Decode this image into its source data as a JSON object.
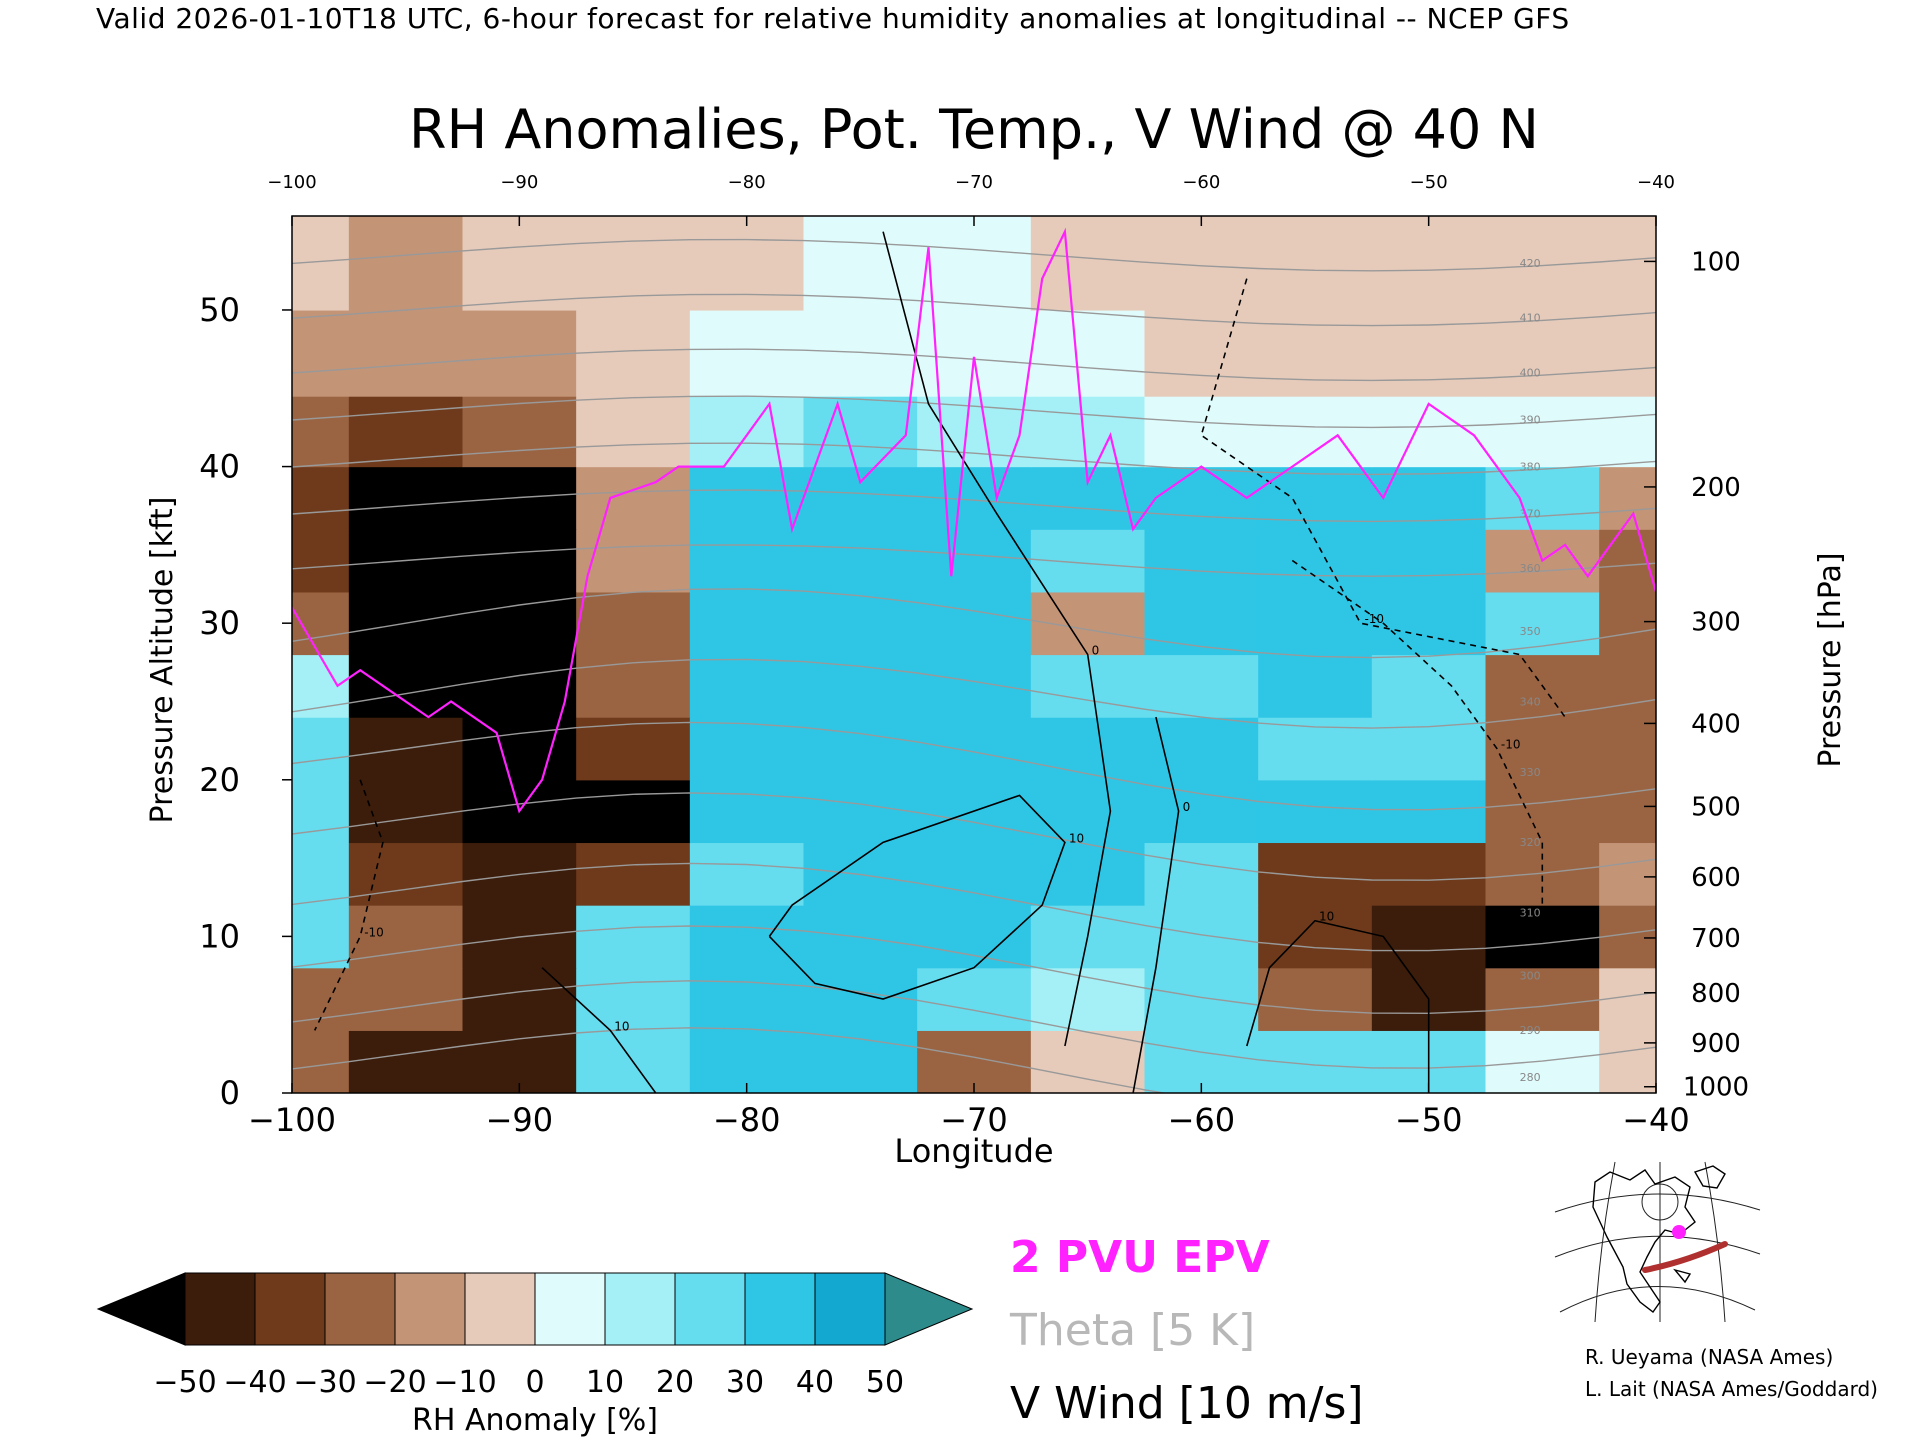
{
  "header": "Valid 2026-01-10T18 UTC, 6-hour forecast for relative humidity anomalies at longitudinal -- NCEP GFS",
  "chart_data": {
    "type": "heatmap",
    "title": "RH Anomalies, Pot. Temp., V Wind @ 40 N",
    "xlabel": "Longitude",
    "ylabel_left": "Pressure Altitude [kft]",
    "ylabel_right": "Pressure [hPa]",
    "xlim": [
      -100,
      -40
    ],
    "ylim": [
      0,
      56
    ],
    "x_ticks": [
      -100,
      -90,
      -80,
      -70,
      -60,
      -50,
      -40
    ],
    "y_ticks": [
      0,
      10,
      20,
      30,
      40,
      50
    ],
    "pressure_ticks": [
      {
        "hpa": "100",
        "kft": 53.1
      },
      {
        "hpa": "200",
        "kft": 38.7
      },
      {
        "hpa": "300",
        "kft": 30.1
      },
      {
        "hpa": "400",
        "kft": 23.6
      },
      {
        "hpa": "500",
        "kft": 18.3
      },
      {
        "hpa": "600",
        "kft": 13.8
      },
      {
        "hpa": "700",
        "kft": 9.9
      },
      {
        "hpa": "800",
        "kft": 6.4
      },
      {
        "hpa": "900",
        "kft": 3.2
      },
      {
        "hpa": "1000",
        "kft": 0.4
      }
    ],
    "rh_anomaly_grid": {
      "x": [
        -100,
        -95,
        -90,
        -85,
        -80,
        -75,
        -70,
        -65,
        -60,
        -55,
        -50,
        -45,
        -40
      ],
      "y": [
        2,
        6,
        10,
        14,
        18,
        22,
        26,
        30,
        34,
        38,
        42,
        47,
        53
      ],
      "values": [
        [
          -30,
          -42,
          -42,
          25,
          30,
          30,
          -30,
          -10,
          20,
          20,
          20,
          0,
          -10
        ],
        [
          -25,
          -30,
          -45,
          25,
          30,
          30,
          20,
          10,
          20,
          -30,
          -45,
          -30,
          -10
        ],
        [
          25,
          -25,
          -42,
          20,
          30,
          30,
          30,
          25,
          25,
          -40,
          -45,
          -50,
          -30
        ],
        [
          25,
          -40,
          -45,
          -40,
          25,
          30,
          30,
          30,
          25,
          -35,
          -35,
          -30,
          -20
        ],
        [
          25,
          -45,
          -50,
          -50,
          30,
          30,
          30,
          30,
          30,
          30,
          30,
          -30,
          -30
        ],
        [
          20,
          -45,
          -50,
          -40,
          30,
          30,
          30,
          30,
          30,
          25,
          25,
          -30,
          -30
        ],
        [
          15,
          -50,
          -50,
          -30,
          30,
          30,
          30,
          25,
          25,
          30,
          25,
          -25,
          -30
        ],
        [
          -25,
          -50,
          -50,
          -25,
          30,
          30,
          30,
          -20,
          30,
          30,
          30,
          20,
          -30
        ],
        [
          -35,
          -50,
          -50,
          -20,
          30,
          30,
          30,
          25,
          30,
          30,
          30,
          -20,
          -25
        ],
        [
          -35,
          -50,
          -50,
          -20,
          30,
          30,
          30,
          30,
          30,
          30,
          30,
          25,
          -15
        ],
        [
          -30,
          -35,
          -30,
          -10,
          10,
          20,
          15,
          10,
          5,
          5,
          5,
          0,
          0
        ],
        [
          -15,
          -20,
          -15,
          -8,
          0,
          5,
          5,
          0,
          -5,
          -5,
          -5,
          -5,
          -5
        ],
        [
          -10,
          -15,
          -10,
          -5,
          -5,
          0,
          0,
          -5,
          -10,
          -10,
          -10,
          -8,
          -5
        ]
      ]
    },
    "v_wind_contours": [
      {
        "label": "10",
        "points": [
          [
            -89,
            8
          ],
          [
            -86,
            4
          ],
          [
            -84,
            0
          ]
        ]
      },
      {
        "label": "10",
        "points": [
          [
            -79,
            10
          ],
          [
            -77,
            7
          ],
          [
            -74,
            6
          ],
          [
            -70,
            8
          ],
          [
            -67,
            12
          ],
          [
            -66,
            16
          ],
          [
            -68,
            19
          ],
          [
            -74,
            16
          ],
          [
            -78,
            12
          ],
          [
            -79,
            10
          ]
        ]
      },
      {
        "label": "0",
        "points": [
          [
            -74,
            55
          ],
          [
            -72,
            44
          ],
          [
            -69,
            37
          ],
          [
            -65,
            28
          ],
          [
            -64,
            18
          ],
          [
            -65,
            10
          ],
          [
            -66,
            3
          ]
        ]
      },
      {
        "label": "0",
        "points": [
          [
            -63,
            0
          ],
          [
            -62,
            8
          ],
          [
            -61,
            18
          ],
          [
            -62,
            24
          ]
        ]
      },
      {
        "label": "-10",
        "points": [
          [
            -58,
            52
          ],
          [
            -60,
            42
          ],
          [
            -56,
            38
          ],
          [
            -53,
            30
          ],
          [
            -46,
            28
          ],
          [
            -44,
            24
          ]
        ]
      },
      {
        "label": "-10",
        "points": [
          [
            -56,
            34
          ],
          [
            -52,
            30
          ],
          [
            -49,
            26
          ],
          [
            -47,
            22
          ],
          [
            -45,
            16
          ],
          [
            -45,
            10
          ]
        ]
      },
      {
        "label": "10",
        "points": [
          [
            -50,
            0
          ],
          [
            -50,
            6
          ],
          [
            -52,
            10
          ],
          [
            -55,
            11
          ],
          [
            -57,
            8
          ],
          [
            -58,
            3
          ]
        ]
      },
      {
        "label": "-10",
        "points": [
          [
            -97,
            20
          ],
          [
            -96,
            16
          ],
          [
            -97,
            10
          ],
          [
            -99,
            4
          ]
        ]
      }
    ],
    "theta_levels_k": [
      280,
      290,
      300,
      310,
      320,
      330,
      340,
      350,
      360,
      370,
      380,
      390,
      400,
      410,
      420
    ],
    "epv_2pvu": {
      "lon": [
        -100,
        -98,
        -97,
        -96,
        -94,
        -93,
        -91,
        -90,
        -89,
        -88,
        -87,
        -86,
        -84,
        -83,
        -81,
        -80,
        -79,
        -78,
        -77,
        -76,
        -75,
        -73,
        -72,
        -71,
        -70,
        -69,
        -68,
        -67,
        -66,
        -65,
        -64,
        -63,
        -62,
        -60,
        -58,
        -56,
        -54,
        -52,
        -50,
        -48,
        -46,
        -45,
        -44,
        -43,
        -41,
        -40
      ],
      "kft": [
        31,
        26,
        27,
        26,
        24,
        25,
        23,
        18,
        20,
        25,
        33,
        38,
        39,
        40,
        40,
        42,
        44,
        36,
        40,
        44,
        39,
        42,
        54,
        33,
        47,
        38,
        42,
        52,
        55,
        39,
        42,
        36,
        38,
        40,
        38,
        40,
        42,
        38,
        44,
        42,
        38,
        34,
        35,
        33,
        37,
        32
      ]
    }
  },
  "legend_lines": {
    "epv": "2 PVU EPV",
    "theta": "Theta [5 K]",
    "vwind": "V Wind [10 m/s]"
  },
  "colorbar": {
    "label": "RH Anomaly [%]",
    "ticks": [
      "-50",
      "-40",
      "-30",
      "-20",
      "-10",
      "0",
      "10",
      "20",
      "30",
      "40",
      "50"
    ],
    "colors": [
      "#000000",
      "#3c1c0a",
      "#6e3a1b",
      "#9a6443",
      "#c49477",
      "#e6cbbb",
      "#e0fbfc",
      "#a4f0f6",
      "#66dcef",
      "#2fc6e6",
      "#12a8cf",
      "#0a7fa6",
      "#2e8b8b"
    ]
  },
  "credits": {
    "line1": "R. Ueyama (NASA Ames)",
    "line2": "L. Lait (NASA Ames/Goddard)"
  },
  "colors": {
    "epv": "#ff22ff",
    "theta": "#999999",
    "vwind": "#000000",
    "section_line": "#b03030"
  },
  "inset_map": {
    "section_marker_lon": -70
  }
}
